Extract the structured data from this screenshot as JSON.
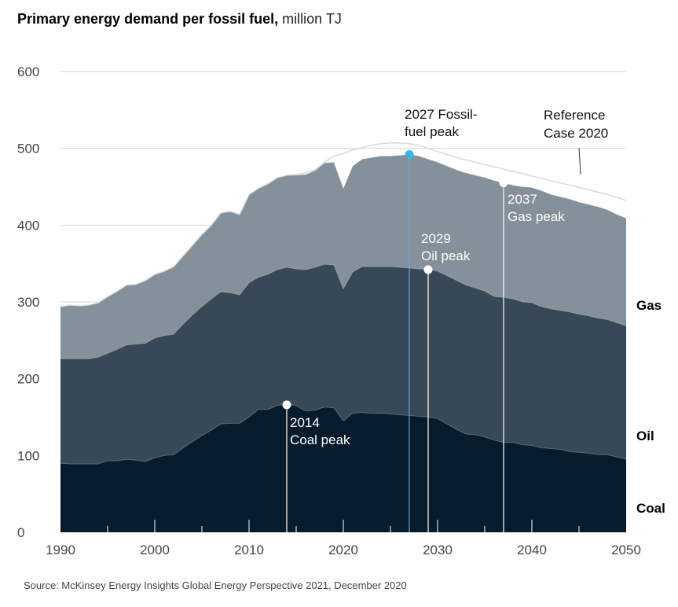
{
  "title": {
    "bold": "Primary energy demand per fossil fuel,",
    "unit": "million TJ"
  },
  "source": "Source: McKinsey Energy Insights Global Energy Perspective 2021, December 2020",
  "colors": {
    "coal": "#061c2c",
    "oil": "#374857",
    "gas": "#84909a",
    "reference": "#d9d9d9",
    "fossil_peak": "#39b4ea",
    "grid": "#d8d8d8"
  },
  "chart_data": {
    "type": "area",
    "stacked": true,
    "xlim": [
      1990,
      2050
    ],
    "ylim": [
      0,
      600
    ],
    "x_ticks": [
      "1990",
      "2000",
      "2010",
      "2020",
      "2030",
      "2040",
      "2050"
    ],
    "y_ticks": [
      "0",
      "100",
      "200",
      "300",
      "400",
      "500",
      "600"
    ],
    "grid": true,
    "x": [
      1990,
      1991,
      1992,
      1993,
      1994,
      1995,
      1996,
      1997,
      1998,
      1999,
      2000,
      2001,
      2002,
      2003,
      2004,
      2005,
      2006,
      2007,
      2008,
      2009,
      2010,
      2011,
      2012,
      2013,
      2014,
      2015,
      2016,
      2017,
      2018,
      2019,
      2020,
      2021,
      2022,
      2023,
      2024,
      2025,
      2026,
      2027,
      2028,
      2029,
      2030,
      2031,
      2032,
      2033,
      2034,
      2035,
      2036,
      2037,
      2038,
      2039,
      2040,
      2041,
      2042,
      2043,
      2044,
      2045,
      2046,
      2047,
      2048,
      2049,
      2050
    ],
    "series": [
      {
        "name": "Coal",
        "cumulative": [
          90,
          89,
          89,
          89,
          89,
          93,
          93,
          95,
          94,
          92,
          97,
          100,
          101,
          110,
          118,
          126,
          133,
          141,
          142,
          142,
          150,
          160,
          160,
          165,
          167,
          165,
          158,
          159,
          163,
          162,
          145,
          155,
          156,
          155,
          155,
          154,
          153,
          152,
          151,
          150,
          148,
          141,
          134,
          128,
          127,
          124,
          120,
          117,
          117,
          114,
          113,
          110,
          109,
          108,
          105,
          104,
          103,
          101,
          101,
          98,
          95
        ]
      },
      {
        "name": "Oil",
        "cumulative": [
          226,
          226,
          226,
          226,
          228,
          233,
          238,
          244,
          245,
          246,
          253,
          256,
          258,
          271,
          283,
          294,
          304,
          313,
          312,
          309,
          325,
          332,
          336,
          342,
          345,
          343,
          342,
          345,
          349,
          348,
          317,
          339,
          346,
          346,
          346,
          346,
          345,
          344,
          343,
          342,
          340,
          334,
          328,
          322,
          318,
          314,
          307,
          306,
          304,
          300,
          299,
          294,
          291,
          289,
          287,
          284,
          282,
          279,
          277,
          273,
          269
        ]
      },
      {
        "name": "Gas",
        "cumulative": [
          294,
          296,
          295,
          296,
          299,
          307,
          314,
          322,
          323,
          328,
          336,
          340,
          346,
          360,
          374,
          388,
          400,
          416,
          418,
          414,
          440,
          448,
          454,
          462,
          465,
          465,
          466,
          471,
          481,
          482,
          448,
          477,
          486,
          488,
          490,
          490,
          491,
          492,
          490,
          486,
          482,
          477,
          472,
          468,
          465,
          462,
          458,
          455,
          452,
          450,
          449,
          445,
          440,
          437,
          434,
          430,
          427,
          424,
          420,
          414,
          409
        ]
      }
    ],
    "reference_case": {
      "name": "Reference Case 2020",
      "values": [
        294,
        296,
        295,
        296,
        299,
        307,
        314,
        322,
        323,
        328,
        336,
        340,
        346,
        360,
        374,
        388,
        400,
        416,
        418,
        414,
        440,
        448,
        454,
        462,
        465,
        466,
        468,
        472,
        482,
        490,
        493,
        498,
        501,
        504,
        506,
        507,
        507,
        506,
        504,
        500,
        496,
        492,
        488,
        485,
        482,
        479,
        476,
        473,
        470,
        467,
        464,
        461,
        458,
        455,
        452,
        449,
        446,
        443,
        440,
        436,
        432
      ]
    },
    "annotations": [
      {
        "key": "fossil",
        "year": 2027,
        "value": 492,
        "lines": [
          "2027 Fossil-",
          "fuel peak"
        ]
      },
      {
        "key": "oil",
        "year": 2029,
        "value": 342,
        "lines": [
          "2029",
          "Oil peak"
        ]
      },
      {
        "key": "gas",
        "year": 2037,
        "value": 455,
        "lines": [
          "2037",
          "Gas peak"
        ]
      },
      {
        "key": "coal",
        "year": 2014,
        "value": 166,
        "lines": [
          "2014",
          "Coal peak"
        ]
      }
    ],
    "reference_label": [
      "Reference",
      "Case 2020"
    ],
    "series_labels": [
      "Gas",
      "Oil",
      "Coal"
    ]
  }
}
